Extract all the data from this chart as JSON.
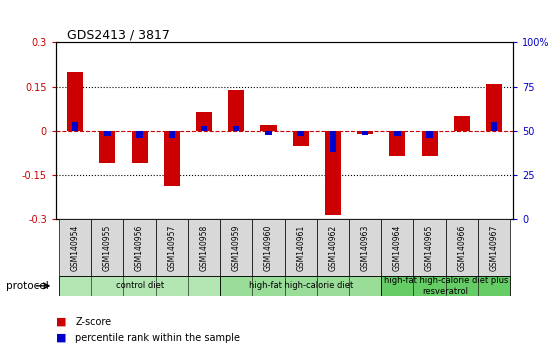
{
  "title": "GDS2413 / 3817",
  "samples": [
    "GSM140954",
    "GSM140955",
    "GSM140956",
    "GSM140957",
    "GSM140958",
    "GSM140959",
    "GSM140960",
    "GSM140961",
    "GSM140962",
    "GSM140963",
    "GSM140964",
    "GSM140965",
    "GSM140966",
    "GSM140967"
  ],
  "zscore": [
    0.2,
    -0.11,
    -0.11,
    -0.185,
    0.065,
    0.14,
    0.02,
    -0.05,
    -0.285,
    -0.01,
    -0.085,
    -0.085,
    0.05,
    0.16
  ],
  "percentile_raw": [
    55,
    47,
    46,
    46,
    53,
    53,
    48,
    47,
    38,
    48,
    47,
    46,
    50,
    55
  ],
  "ylim": [
    -0.3,
    0.3
  ],
  "yticks_left": [
    -0.3,
    -0.15,
    0.0,
    0.15,
    0.3
  ],
  "ytick_labels_left": [
    "-0.3",
    "-0.15",
    "0",
    "0.15",
    "0.3"
  ],
  "right_ytick_vals": [
    -0.3,
    -0.15,
    0.0,
    0.15,
    0.3
  ],
  "right_ytick_labels": [
    "0",
    "25",
    "50",
    "75",
    "100%"
  ],
  "hline_y": 0.0,
  "dotted_lines": [
    -0.15,
    0.15
  ],
  "zscore_color": "#cc0000",
  "pct_color": "#0000cc",
  "bar_width": 0.5,
  "pct_bar_width": 0.2,
  "groups": [
    {
      "label": "control diet",
      "start": 0,
      "end": 4,
      "color": "#b3e6b3"
    },
    {
      "label": "high-fat high-calorie diet",
      "start": 5,
      "end": 9,
      "color": "#99dd99"
    },
    {
      "label": "high-fat high-calorie diet plus\nresveratrol",
      "start": 10,
      "end": 13,
      "color": "#66cc66"
    }
  ],
  "protocol_label": "protocol",
  "legend_zscore": "Z-score",
  "legend_pct": "percentile rank within the sample",
  "tick_label_color_left": "#cc0000",
  "tick_label_color_right": "#0000cc",
  "bg_color": "#f0f0f0"
}
